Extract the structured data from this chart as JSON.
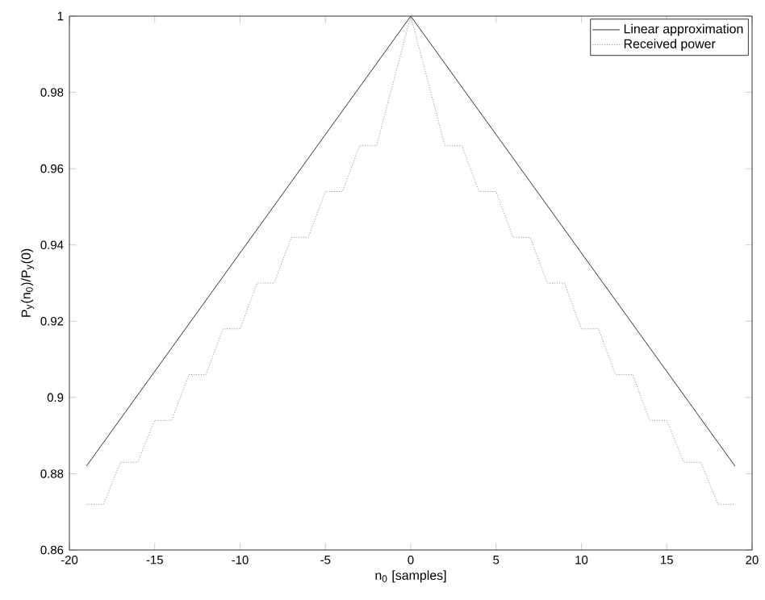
{
  "chart_data": {
    "type": "line",
    "xlabel": "n$_{0}$ [samples]",
    "ylabel": "P$_{y}$(n$_{0}$)/P$_{y}$(0)",
    "xlim": [
      -20,
      20
    ],
    "ylim": [
      0.86,
      1
    ],
    "xticks": [
      -20,
      -15,
      -10,
      -5,
      0,
      5,
      10,
      15,
      20
    ],
    "yticks": [
      0.86,
      0.88,
      0.9,
      0.92,
      0.94,
      0.96,
      0.98,
      1
    ],
    "grid": false,
    "legend": "top right",
    "marker": "none",
    "series": [
      {
        "name": "Linear approximation",
        "color": "#000000",
        "line_style": "solid",
        "x": [
          -19,
          0,
          19
        ],
        "values": [
          0.882,
          1,
          0.882
        ]
      },
      {
        "name": "Received power",
        "color": "#808080",
        "line_style": "dotted",
        "x": [
          -19,
          -18,
          -17,
          -16,
          -15,
          -14,
          -13,
          -12,
          -11,
          -10,
          -9,
          -8,
          -7,
          -6,
          -5,
          -4,
          -3,
          -2,
          -1,
          0,
          1,
          2,
          3,
          4,
          5,
          6,
          7,
          8,
          9,
          10,
          11,
          12,
          13,
          14,
          15,
          16,
          17,
          18,
          19
        ],
        "values": [
          0.872,
          0.872,
          0.883,
          0.883,
          0.894,
          0.894,
          0.906,
          0.906,
          0.918,
          0.918,
          0.93,
          0.93,
          0.942,
          0.942,
          0.954,
          0.954,
          0.966,
          0.966,
          0.983,
          1,
          0.983,
          0.966,
          0.966,
          0.954,
          0.954,
          0.942,
          0.942,
          0.93,
          0.93,
          0.918,
          0.918,
          0.906,
          0.906,
          0.894,
          0.894,
          0.883,
          0.883,
          0.872,
          0.872
        ]
      }
    ]
  }
}
